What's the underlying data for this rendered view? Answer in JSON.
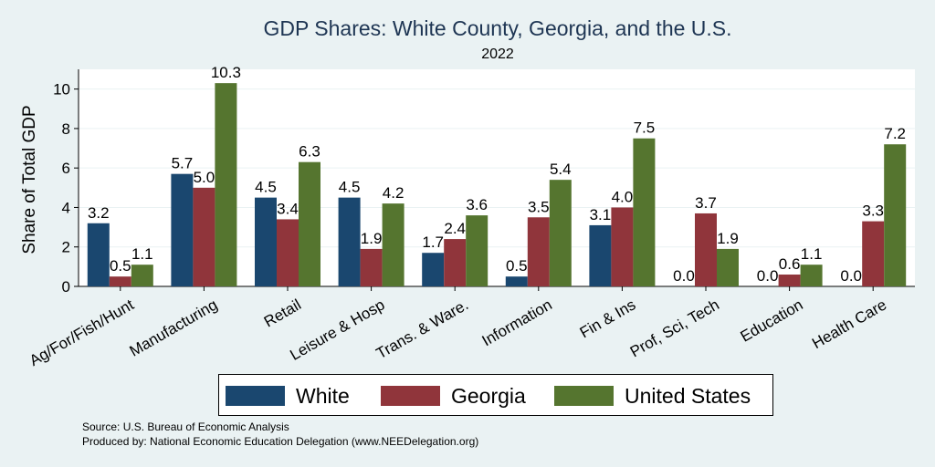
{
  "chart_data": {
    "type": "bar",
    "title": "GDP Shares: White County, Georgia, and the U.S.",
    "subtitle": "2022",
    "ylabel": "Share of Total GDP",
    "xlabel": "",
    "ylim": [
      0,
      11
    ],
    "yticks": [
      0,
      2,
      4,
      6,
      8,
      10
    ],
    "grid": true,
    "legend_position": "bottom",
    "categories": [
      "Ag/For/Fish/Hunt",
      "Manufacturing",
      "Retail",
      "Leisure & Hosp",
      "Trans. & Ware.",
      "Information",
      "Fin & Ins",
      "Prof, Sci, Tech",
      "Education",
      "Health Care"
    ],
    "series": [
      {
        "name": "White",
        "color": "#1a476f",
        "values": [
          3.2,
          5.7,
          4.5,
          4.5,
          1.7,
          0.5,
          3.1,
          0.0,
          0.0,
          0.0
        ],
        "labels": [
          "3.2",
          "5.7",
          "4.5",
          "4.5",
          "1.7",
          "0.5",
          "3.1",
          "0.0",
          "0.0",
          "0.0"
        ]
      },
      {
        "name": "Georgia",
        "color": "#90353b",
        "values": [
          0.5,
          5.0,
          3.4,
          1.9,
          2.4,
          3.5,
          4.0,
          3.7,
          0.6,
          3.3
        ],
        "labels": [
          "0.5",
          "5.0",
          "3.4",
          "1.9",
          "2.4",
          "3.5",
          "4.0",
          "3.7",
          "0.6",
          "3.3"
        ]
      },
      {
        "name": "United States",
        "color": "#55752f",
        "values": [
          1.1,
          10.3,
          6.3,
          4.2,
          3.6,
          5.4,
          7.5,
          1.9,
          1.1,
          7.2
        ],
        "labels": [
          "1.1",
          "10.3",
          "6.3",
          "4.2",
          "3.6",
          "5.4",
          "7.5",
          "1.9",
          "1.1",
          "7.2"
        ]
      }
    ]
  },
  "footer": {
    "source": "Source: U.S. Bureau of Economic Analysis",
    "produced_by": "Produced by: National Economic Education Delegation (www.NEEDelegation.org)"
  }
}
